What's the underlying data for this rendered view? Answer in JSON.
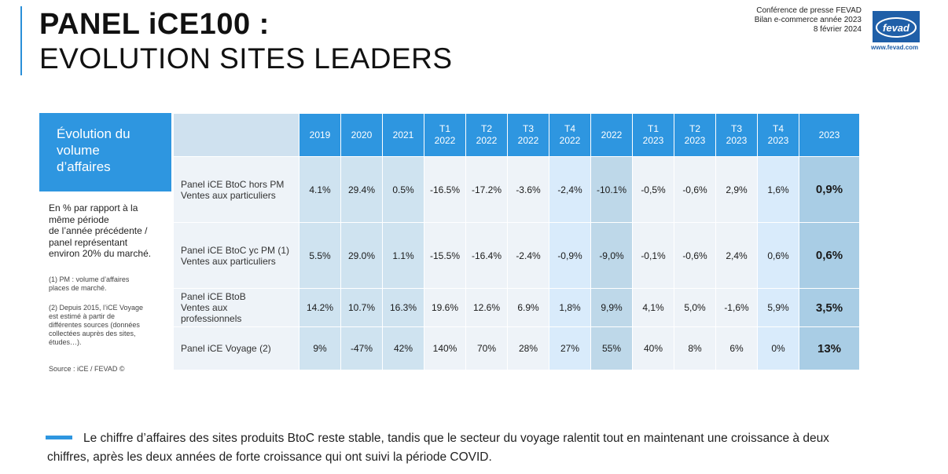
{
  "header": {
    "title_line1": "PANEL iCE100 :",
    "title_line2": "EVOLUTION SITES LEADERS",
    "conference_line1": "Conférence de presse FEVAD",
    "conference_line2": "Bilan e-commerce année 2023",
    "conference_line3": "8 février 2024",
    "logo_text": "fevad",
    "logo_url": "www.fevad.com",
    "accent_color": "#2e96e0"
  },
  "sidebar": {
    "heading": "Évolution du\nvolume\nd’affaires",
    "note_main": "En % par rapport à la\nmême période\nde l’année précédente /\npanel représentant\nenviron 20% du marché.",
    "note_pm": "(1) PM : volume d’affaires\nplaces de marché.",
    "note_voyage": "(2) Depuis 2015, l’iCE Voyage\nest estimé à partir de\ndifférentes sources (données\ncollectées auprès des sites,\nétudes…).",
    "source": "Source : iCE / FEVAD ©"
  },
  "table": {
    "columns": [
      "2019",
      "2020",
      "2021",
      "T1\n2022",
      "T2\n2022",
      "T3\n2022",
      "T4\n2022",
      "2022",
      "T1\n2023",
      "T2\n2023",
      "T3\n2023",
      "T4\n2023",
      "2023"
    ],
    "rows": [
      {
        "label": "Panel iCE BtoC hors PM\nVentes aux particuliers",
        "values": [
          "4.1%",
          "29.4%",
          "0.5%",
          "-16.5%",
          "-17.2%",
          "-3.6%",
          "-2,4%",
          "-10.1%",
          "-0,5%",
          "-0,6%",
          "2,9%",
          "1,6%",
          "0,9%"
        ]
      },
      {
        "label": "Panel iCE BtoC yc PM (1)\nVentes aux particuliers",
        "values": [
          "5.5%",
          "29.0%",
          "1.1%",
          "-15.5%",
          "-16.4%",
          "-2.4%",
          "-0,9%",
          "-9,0%",
          "-0,1%",
          "-0,6%",
          "2,4%",
          "0,6%",
          "0,6%"
        ]
      },
      {
        "label": "Panel iCE BtoB\nVentes aux\nprofessionnels",
        "values": [
          "14.2%",
          "10.7%",
          "16.3%",
          "19.6%",
          "12.6%",
          "6.9%",
          "1,8%",
          "9,9%",
          "4,1%",
          "5,0%",
          "-1,6%",
          "5,9%",
          "3,5%"
        ]
      },
      {
        "label": "Panel iCE Voyage (2)",
        "values": [
          "9%",
          "-47%",
          "42%",
          "140%",
          "70%",
          "28%",
          "27%",
          "55%",
          "40%",
          "8%",
          "6%",
          "0%",
          "13%"
        ]
      }
    ]
  },
  "footer": {
    "text": "Le chiffre d’affaires des sites produits BtoC reste stable, tandis que le secteur du voyage ralentit tout en maintenant une croissance à deux chiffres, après les deux années de forte croissance qui ont suivi la période COVID."
  }
}
